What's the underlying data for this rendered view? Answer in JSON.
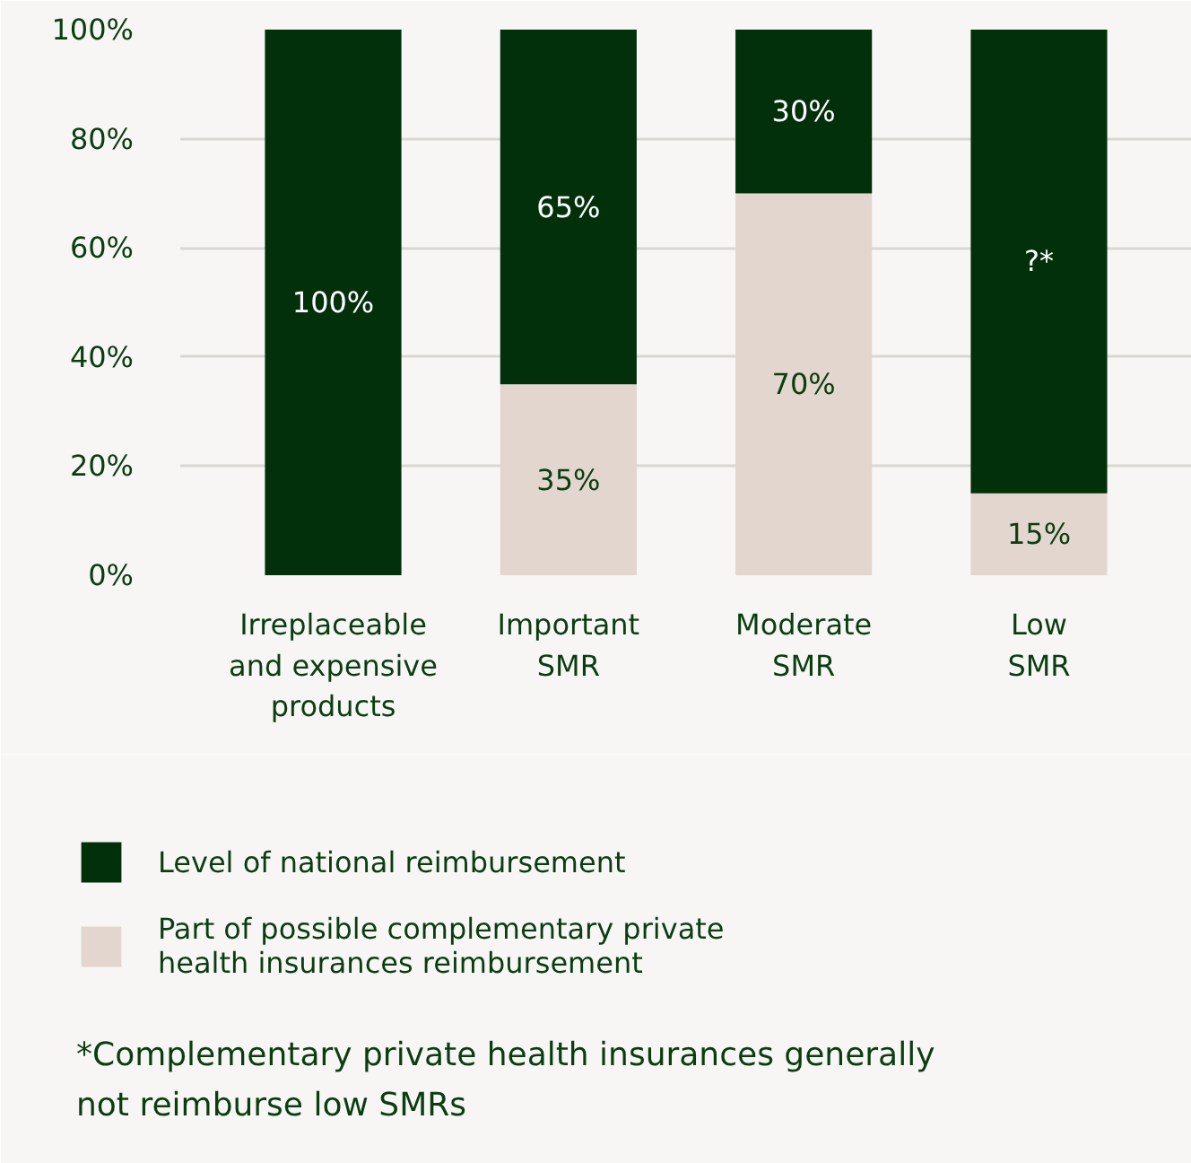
{
  "chart_data": {
    "type": "bar",
    "stacked": true,
    "categories": [
      "Irreplaceable\nand expensive\nproducts",
      "Important\nSMR",
      "Moderate\nSMR",
      "Low\nSMR"
    ],
    "series": [
      {
        "name": "Part of possible complementary private\nhealth insurances reimbursement",
        "color": "#e3d6ce",
        "values": [
          0,
          35,
          70,
          15
        ],
        "value_labels": [
          null,
          "35%",
          "70%",
          "15%"
        ]
      },
      {
        "name": "Level of national reimbursement",
        "color": "#02300b",
        "values": [
          100,
          65,
          30,
          85
        ],
        "value_labels": [
          "100%",
          "65%",
          "30%",
          "?*"
        ]
      }
    ],
    "ylim": [
      0,
      100
    ],
    "yticks": [
      {
        "value": 0,
        "label": "0%"
      },
      {
        "value": 20,
        "label": "20%"
      },
      {
        "value": 40,
        "label": "40%"
      },
      {
        "value": 60,
        "label": "60%"
      },
      {
        "value": 80,
        "label": "80%"
      },
      {
        "value": 100,
        "label": "100%"
      }
    ],
    "grid": "y",
    "legend": "bottom",
    "annotations": [
      "*Complementary private health insurances generally\nnot reimburse low SMRs"
    ]
  }
}
